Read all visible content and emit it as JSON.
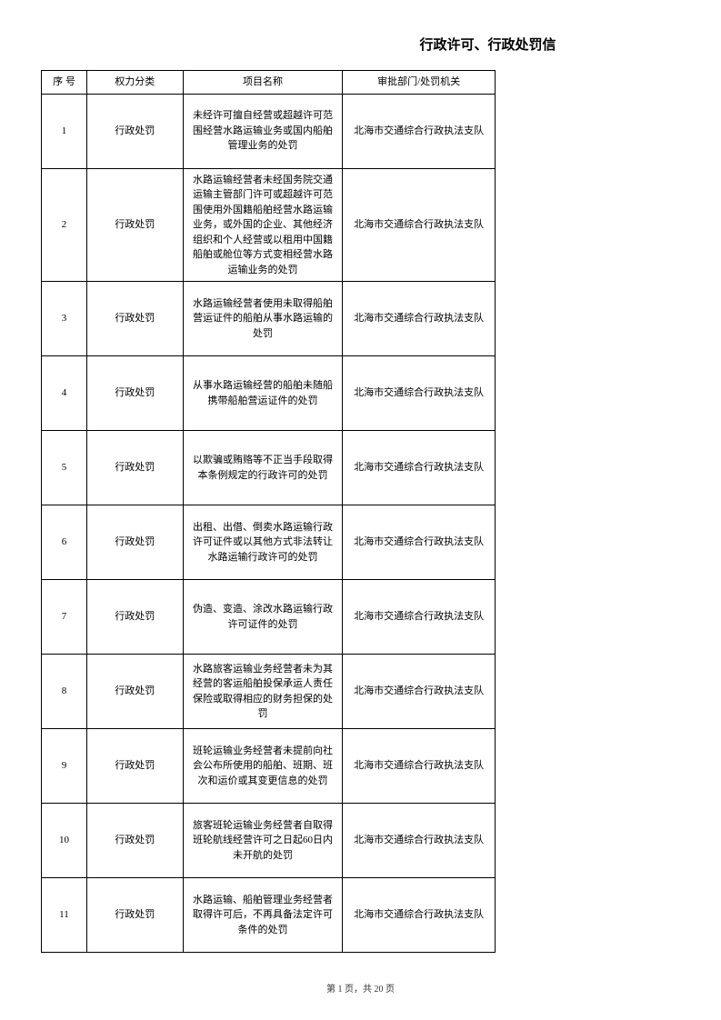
{
  "title": "行政许可、行政处罚信",
  "columns": [
    "序 号",
    "权力分类",
    "项目名称",
    "审批部门/处罚机关"
  ],
  "rows": [
    {
      "seq": "1",
      "category": "行政处罚",
      "project": "未经许可擅自经营或超越许可范围经营水路运输业务或国内船舶管理业务的处罚",
      "dept": "北海市交通综合行政执法支队"
    },
    {
      "seq": "2",
      "category": "行政处罚",
      "project": "水路运输经营者未经国务院交通运输主管部门许可或超越许可范围使用外国籍船舶经营水路运输业务，或外国的企业、其他经济组织和个人经营或以租用中国籍船舶或舱位等方式变相经营水路运输业务的处罚",
      "dept": "北海市交通综合行政执法支队"
    },
    {
      "seq": "3",
      "category": "行政处罚",
      "project": "水路运输经营者使用未取得船舶营运证件的船舶从事水路运输的处罚",
      "dept": "北海市交通综合行政执法支队"
    },
    {
      "seq": "4",
      "category": "行政处罚",
      "project": "从事水路运输经营的船舶未随船携带船舶营运证件的处罚",
      "dept": "北海市交通综合行政执法支队"
    },
    {
      "seq": "5",
      "category": "行政处罚",
      "project": "以欺骗或贿赂等不正当手段取得本条例规定的行政许可的处罚",
      "dept": "北海市交通综合行政执法支队"
    },
    {
      "seq": "6",
      "category": "行政处罚",
      "project": "出租、出借、倒卖水路运输行政许可证件或以其他方式非法转让水路运输行政许可的处罚",
      "dept": "北海市交通综合行政执法支队"
    },
    {
      "seq": "7",
      "category": "行政处罚",
      "project": "伪造、变造、涂改水路运输行政许可证件的处罚",
      "dept": "北海市交通综合行政执法支队"
    },
    {
      "seq": "8",
      "category": "行政处罚",
      "project": "水路旅客运输业务经营者未为其经营的客运船舶投保承运人责任保险或取得相应的财务担保的处罚",
      "dept": "北海市交通综合行政执法支队"
    },
    {
      "seq": "9",
      "category": "行政处罚",
      "project": "班轮运输业务经营者未提前向社会公布所使用的船舶、班期、班次和运价或其变更信息的处罚",
      "dept": "北海市交通综合行政执法支队"
    },
    {
      "seq": "10",
      "category": "行政处罚",
      "project": "旅客班轮运输业务经营者自取得班轮航线经营许可之日起60日内未开航的处罚",
      "dept": "北海市交通综合行政执法支队"
    },
    {
      "seq": "11",
      "category": "行政处罚",
      "project": "水路运输、船舶管理业务经营者取得许可后，不再具备法定许可条件的处罚",
      "dept": "北海市交通综合行政执法支队"
    }
  ],
  "footer": "第 1 页，共 20 页"
}
